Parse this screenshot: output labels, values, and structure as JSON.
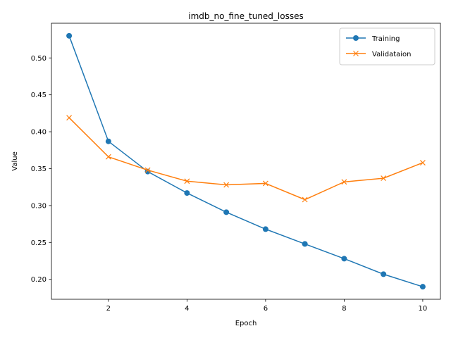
{
  "chart_data": {
    "type": "line",
    "title": "imdb_no_fine_tuned_losses",
    "xlabel": "Epoch",
    "ylabel": "Value",
    "x": [
      1,
      2,
      3,
      4,
      5,
      6,
      7,
      8,
      9,
      10
    ],
    "xlim": [
      0.55,
      10.45
    ],
    "ylim": [
      0.173,
      0.547
    ],
    "xticks": [
      2,
      4,
      6,
      8,
      10
    ],
    "yticks": [
      0.2,
      0.25,
      0.3,
      0.35,
      0.4,
      0.45,
      0.5
    ],
    "ytick_labels": [
      "0.20",
      "0.25",
      "0.30",
      "0.35",
      "0.40",
      "0.45",
      "0.50"
    ],
    "grid": false,
    "legend_position": "top-right",
    "series": [
      {
        "name": "Training",
        "marker": "circle",
        "color": "#1f77b4",
        "values": [
          0.53,
          0.387,
          0.346,
          0.317,
          0.291,
          0.268,
          0.248,
          0.228,
          0.207,
          0.19
        ]
      },
      {
        "name": "Validataion",
        "marker": "x",
        "color": "#ff7f0e",
        "values": [
          0.419,
          0.366,
          0.348,
          0.333,
          0.328,
          0.33,
          0.308,
          0.332,
          0.337,
          0.358
        ]
      }
    ]
  }
}
